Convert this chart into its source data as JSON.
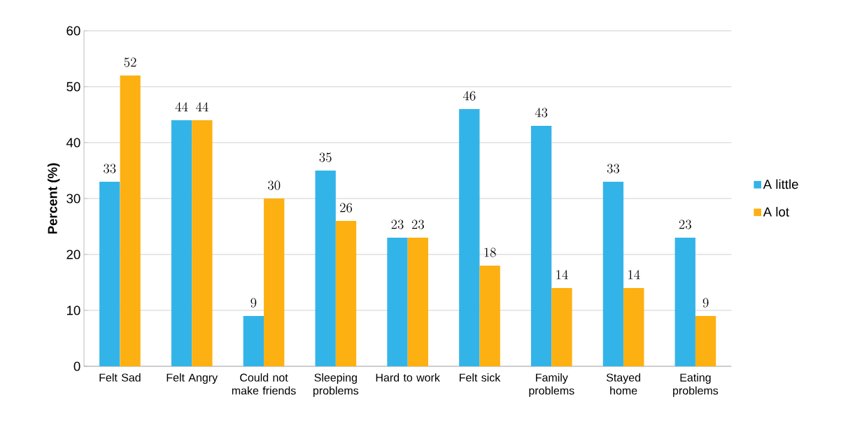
{
  "chart_data": {
    "type": "bar",
    "ylabel": "Percent (%)",
    "categories": [
      "Felt Sad",
      "Felt Angry",
      "Could not make friends",
      "Sleeping problems",
      "Hard to work",
      "Felt sick",
      "Family problems",
      "Stayed home",
      "Eating problems"
    ],
    "series": [
      {
        "name": "A little",
        "color": "#33b4e9",
        "values": [
          33,
          44,
          9,
          35,
          23,
          46,
          43,
          33,
          23
        ]
      },
      {
        "name": "A lot",
        "color": "#fdb012",
        "values": [
          52,
          44,
          30,
          26,
          23,
          18,
          14,
          14,
          9
        ]
      }
    ],
    "ylim": [
      0,
      60
    ],
    "yticks": [
      0,
      10,
      20,
      30,
      40,
      50,
      60
    ],
    "grid": "y",
    "legend": "right",
    "data_labels": true
  }
}
